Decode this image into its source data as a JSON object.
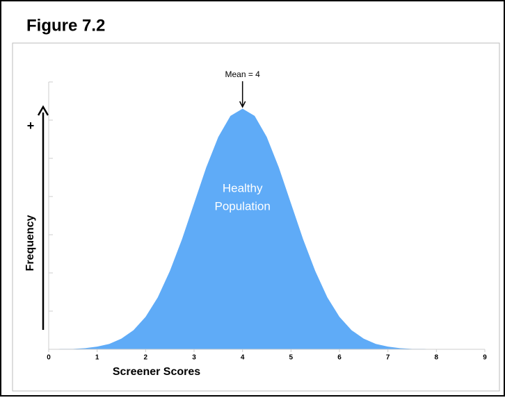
{
  "chart_data": {
    "type": "area",
    "title": "Figure 7.2",
    "x_label": "Screener Scores",
    "y_label": "Frequency",
    "y_sign": "+",
    "mean_label": "Mean = 4",
    "mean": 4,
    "area_label": [
      "Healthy",
      "Population"
    ],
    "color": "#5fabf7",
    "x": [
      0,
      0.25,
      0.5,
      0.75,
      1,
      1.25,
      1.5,
      1.75,
      2,
      2.25,
      2.5,
      2.75,
      3,
      3.25,
      3.5,
      3.75,
      4,
      4.25,
      4.5,
      4.75,
      5,
      5.25,
      5.5,
      5.75,
      6,
      6.25,
      6.5,
      6.75,
      7,
      7.25,
      7.5,
      7.75,
      8,
      8.25,
      8.5,
      8.75,
      9
    ],
    "y": [
      0,
      0.01,
      0.01,
      0.03,
      0.07,
      0.14,
      0.28,
      0.5,
      0.85,
      1.36,
      2.05,
      2.88,
      3.82,
      4.76,
      5.56,
      6.11,
      6.3,
      6.11,
      5.56,
      4.76,
      3.82,
      2.88,
      2.05,
      1.36,
      0.85,
      0.5,
      0.28,
      0.14,
      0.07,
      0.03,
      0.01,
      0.01,
      0,
      0,
      0,
      0,
      0
    ],
    "xlim": [
      0,
      9
    ],
    "xticks": [
      0,
      1,
      2,
      3,
      4,
      5,
      6,
      7,
      8,
      9
    ],
    "ylim": [
      0,
      7
    ],
    "yticks": [
      1,
      2,
      3,
      4,
      5,
      6,
      7
    ]
  }
}
